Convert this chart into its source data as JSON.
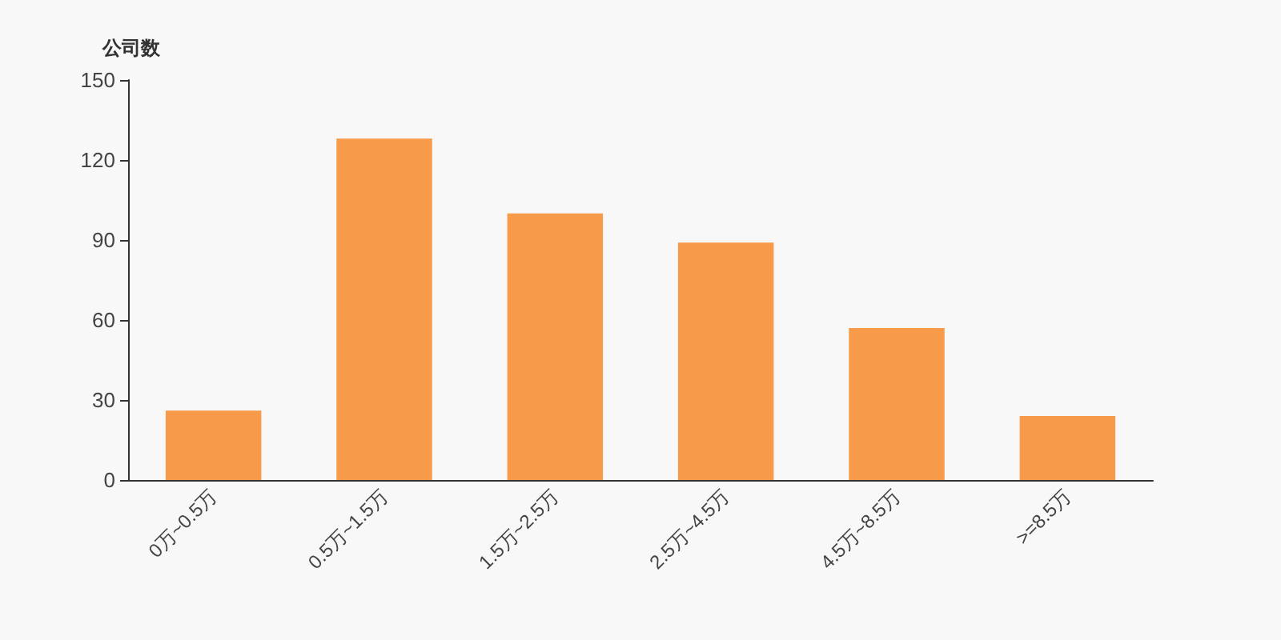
{
  "chart_data": {
    "type": "bar",
    "ylabel": "公司数",
    "categories": [
      "0万~0.5万",
      "0.5万~1.5万",
      "1.5万~2.5万",
      "2.5万~4.5万",
      "4.5万~8.5万",
      ">=8.5万"
    ],
    "series": [
      {
        "color": "#f79a4a",
        "values": [
          26,
          128,
          100,
          89,
          57,
          24
        ]
      }
    ],
    "ylim": [
      0,
      150
    ],
    "yticks": [
      0,
      30,
      60,
      90,
      120,
      150
    ],
    "grid": false
  }
}
